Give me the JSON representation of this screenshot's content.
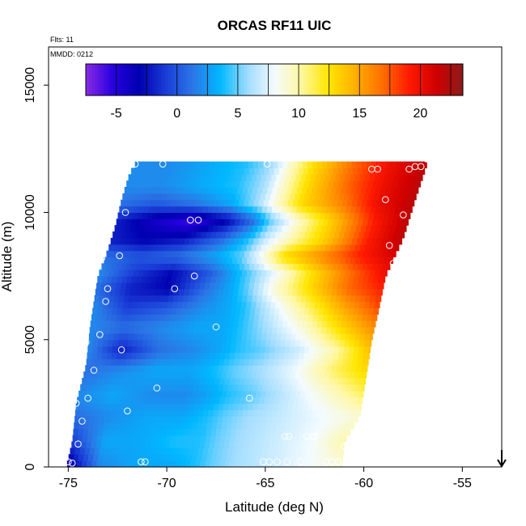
{
  "chart_data": {
    "type": "heatmap",
    "title": "ORCAS RF11 UIC",
    "annotations": {
      "flights": "Flts: 11",
      "date": "MMDD: 0212"
    },
    "xlabel": "Latitude (deg N)",
    "ylabel": "Altitude (m)",
    "xlim": [
      -76,
      -53
    ],
    "ylim": [
      0,
      16500
    ],
    "x_ticks": [
      -75,
      -70,
      -65,
      -60,
      -55
    ],
    "y_ticks": [
      0,
      5000,
      10000,
      15000
    ],
    "colorbar": {
      "range": [
        -7.5,
        23.5
      ],
      "ticks": [
        -5,
        0,
        5,
        10,
        15,
        20
      ],
      "placement": "top",
      "colors": [
        "#8a2be2",
        "#2800e0",
        "#0000b0",
        "#1b3fd8",
        "#2a78e6",
        "#00b8ff",
        "#9fdcff",
        "#f4fbff",
        "#fff7a0",
        "#ffe600",
        "#ffb000",
        "#ff7000",
        "#ff1a00",
        "#d00000",
        "#8b1a1a"
      ]
    },
    "boundary": {
      "lat_left_at_alt": [
        [
          0,
          -75.1
        ],
        [
          1000,
          -74.8
        ],
        [
          2500,
          -74.6
        ],
        [
          4000,
          -74.1
        ],
        [
          5500,
          -73.9
        ],
        [
          7500,
          -73.5
        ],
        [
          8500,
          -73.0
        ],
        [
          9500,
          -72.6
        ],
        [
          10500,
          -72.3
        ],
        [
          11500,
          -71.9
        ],
        [
          11900,
          -71.6
        ]
      ],
      "lat_right_at_alt": [
        [
          0,
          -61.1
        ],
        [
          1000,
          -61.0
        ],
        [
          2000,
          -60.2
        ],
        [
          3500,
          -59.9
        ],
        [
          5000,
          -59.6
        ],
        [
          6000,
          -59.3
        ],
        [
          7500,
          -58.9
        ],
        [
          9000,
          -58.0
        ],
        [
          10500,
          -57.4
        ],
        [
          11900,
          -56.8
        ],
        [
          12200,
          -56.7
        ]
      ]
    },
    "field_anchors": {
      "frac": [
        0.0,
        0.12,
        0.25,
        0.38,
        0.47,
        0.53,
        0.62,
        0.75,
        0.88,
        1.0
      ],
      "layers": [
        {
          "alt": 100,
          "values": [
            -4,
            2,
            3,
            3,
            4,
            5,
            6,
            7,
            8,
            9
          ]
        },
        {
          "alt": 1000,
          "values": [
            -1,
            3,
            3,
            4,
            4,
            5,
            6,
            7,
            8,
            10
          ]
        },
        {
          "alt": 2000,
          "values": [
            1,
            2,
            3,
            3,
            4,
            5,
            6,
            7,
            8,
            9
          ]
        },
        {
          "alt": 2800,
          "values": [
            2,
            3,
            2,
            2,
            3,
            4,
            5,
            7,
            9,
            11
          ]
        },
        {
          "alt": 3800,
          "values": [
            1,
            2,
            3,
            3,
            4,
            5,
            6,
            8,
            11,
            13
          ]
        },
        {
          "alt": 4600,
          "values": [
            2,
            -2,
            1,
            2,
            3,
            4,
            5,
            7,
            10,
            14
          ]
        },
        {
          "alt": 5500,
          "values": [
            2,
            1,
            2,
            3,
            3,
            4,
            6,
            9,
            13,
            16
          ]
        },
        {
          "alt": 6300,
          "values": [
            2,
            -1,
            0,
            2,
            3,
            4,
            7,
            11,
            15,
            18
          ]
        },
        {
          "alt": 7000,
          "values": [
            1,
            -2,
            -3,
            1,
            3,
            5,
            9,
            13,
            17,
            19
          ]
        },
        {
          "alt": 7600,
          "values": [
            2,
            -1,
            -3,
            0,
            3,
            5,
            8,
            13,
            17,
            20
          ]
        },
        {
          "alt": 8300,
          "values": [
            1,
            0,
            1,
            3,
            5,
            8,
            13,
            16,
            19,
            21
          ]
        },
        {
          "alt": 8900,
          "values": [
            -2,
            -3,
            -2,
            1,
            4,
            7,
            10,
            14,
            19,
            22
          ]
        },
        {
          "alt": 9700,
          "values": [
            -2,
            -4,
            -6,
            -3,
            1,
            5,
            9,
            14,
            19,
            22
          ]
        },
        {
          "alt": 10300,
          "values": [
            1,
            0,
            1,
            3,
            6,
            9,
            13,
            16,
            20,
            22
          ]
        },
        {
          "alt": 11000,
          "values": [
            2,
            2,
            3,
            4,
            6,
            9,
            13,
            17,
            20,
            22
          ]
        },
        {
          "alt": 11900,
          "values": [
            2,
            2,
            3,
            4,
            6,
            9,
            13,
            17,
            20,
            22
          ]
        }
      ]
    },
    "sample_points": [
      [
        -75.0,
        200
      ],
      [
        -74.8,
        150
      ],
      [
        -74.5,
        900
      ],
      [
        -74.3,
        1800
      ],
      [
        -74.6,
        2500
      ],
      [
        -74.0,
        2700
      ],
      [
        -73.7,
        3800
      ],
      [
        -74.1,
        4900
      ],
      [
        -73.4,
        5200
      ],
      [
        -73.1,
        6500
      ],
      [
        -73.0,
        7000
      ],
      [
        -73.7,
        7300
      ],
      [
        -73.3,
        8200
      ],
      [
        -72.4,
        8300
      ],
      [
        -72.1,
        10000
      ],
      [
        -71.6,
        11900
      ],
      [
        -70.2,
        11900
      ],
      [
        -72.3,
        4600
      ],
      [
        -72.0,
        2200
      ],
      [
        -70.5,
        3100
      ],
      [
        -69.6,
        7000
      ],
      [
        -68.6,
        7500
      ],
      [
        -68.8,
        9700
      ],
      [
        -68.4,
        9700
      ],
      [
        -67.5,
        5500
      ],
      [
        -65.8,
        2700
      ],
      [
        -64.9,
        11900
      ],
      [
        -65.1,
        200
      ],
      [
        -64.8,
        200
      ],
      [
        -64.4,
        200
      ],
      [
        -63.9,
        200
      ],
      [
        -63.2,
        200
      ],
      [
        -64.0,
        1200
      ],
      [
        -63.8,
        1200
      ],
      [
        -62.9,
        1200
      ],
      [
        -62.5,
        1200
      ],
      [
        -62.6,
        1200
      ],
      [
        -61.9,
        200
      ],
      [
        -61.6,
        200
      ],
      [
        -61.3,
        200
      ],
      [
        -61.0,
        800
      ],
      [
        -71.3,
        200
      ],
      [
        -71.1,
        200
      ],
      [
        -59.6,
        11700
      ],
      [
        -59.3,
        11700
      ],
      [
        -58.7,
        8700
      ],
      [
        -58.5,
        8000
      ],
      [
        -58.2,
        8200
      ],
      [
        -58.9,
        10500
      ],
      [
        -58.0,
        9900
      ],
      [
        -57.7,
        11700
      ],
      [
        -57.4,
        11800
      ],
      [
        -57.1,
        11800
      ],
      [
        -56.8,
        12100
      ]
    ],
    "arrow_marker_lat": -53.0
  }
}
